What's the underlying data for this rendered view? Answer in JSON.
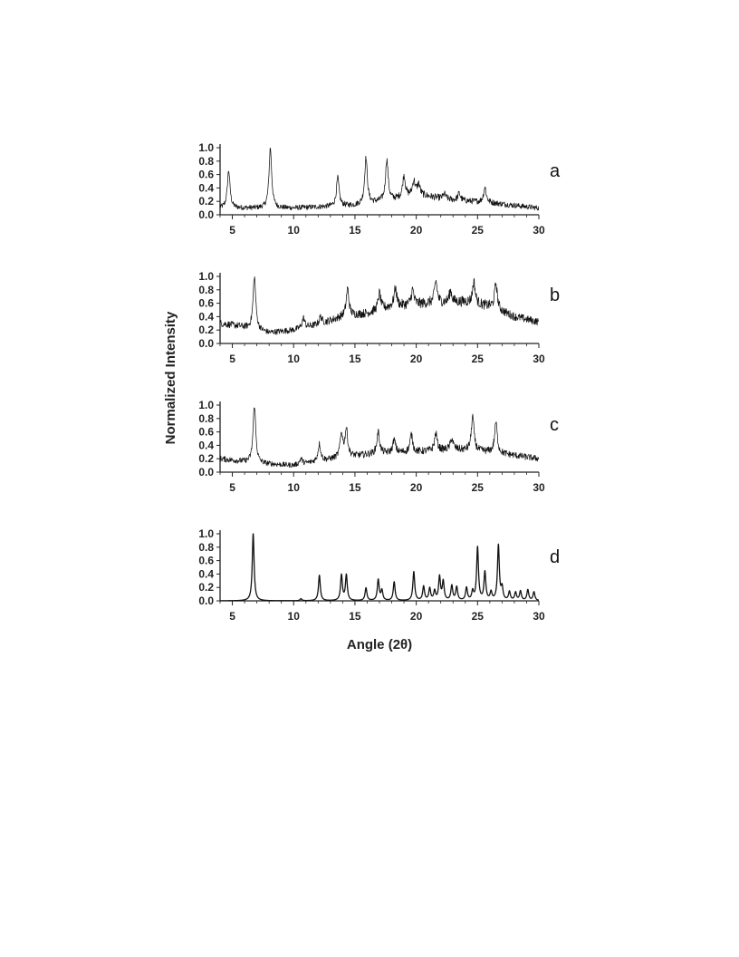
{
  "chart_data": {
    "type": "line",
    "ylabel": "Normalized Intensity",
    "xlabel": "Angle (2θ)",
    "xlim": [
      4,
      30
    ],
    "ylim": [
      0,
      1
    ],
    "xticks": [
      5,
      10,
      15,
      20,
      25,
      30
    ],
    "yticks": [
      0.0,
      0.2,
      0.4,
      0.6,
      0.8,
      1.0
    ],
    "grid": false,
    "panels": [
      {
        "label": "a",
        "style": "noisy",
        "baseline": [
          [
            4,
            0.1
          ],
          [
            10,
            0.1
          ],
          [
            15,
            0.14
          ],
          [
            18,
            0.22
          ],
          [
            20,
            0.3
          ],
          [
            23,
            0.22
          ],
          [
            26,
            0.18
          ],
          [
            30,
            0.1
          ]
        ],
        "peaks": [
          [
            4.7,
            0.66
          ],
          [
            8.1,
            1.0
          ],
          [
            13.6,
            0.55
          ],
          [
            15.9,
            0.85
          ],
          [
            17.6,
            0.82
          ],
          [
            19.0,
            0.58
          ],
          [
            19.8,
            0.5
          ],
          [
            20.2,
            0.45
          ],
          [
            22.3,
            0.31
          ],
          [
            23.5,
            0.32
          ],
          [
            25.6,
            0.41
          ]
        ]
      },
      {
        "label": "b",
        "style": "noisy",
        "baseline": [
          [
            4,
            0.3
          ],
          [
            5.5,
            0.26
          ],
          [
            8,
            0.16
          ],
          [
            10,
            0.2
          ],
          [
            12,
            0.28
          ],
          [
            14,
            0.4
          ],
          [
            16,
            0.45
          ],
          [
            18,
            0.55
          ],
          [
            21,
            0.6
          ],
          [
            24,
            0.62
          ],
          [
            26,
            0.55
          ],
          [
            28,
            0.4
          ],
          [
            30,
            0.32
          ]
        ],
        "peaks": [
          [
            6.8,
            1.0
          ],
          [
            10.8,
            0.38
          ],
          [
            12.2,
            0.4
          ],
          [
            14.4,
            0.82
          ],
          [
            17.0,
            0.75
          ],
          [
            18.3,
            0.82
          ],
          [
            19.7,
            0.8
          ],
          [
            21.6,
            0.93
          ],
          [
            22.8,
            0.78
          ],
          [
            24.7,
            0.92
          ],
          [
            26.5,
            0.9
          ]
        ]
      },
      {
        "label": "c",
        "style": "noisy",
        "baseline": [
          [
            4,
            0.2
          ],
          [
            7,
            0.13
          ],
          [
            10,
            0.1
          ],
          [
            14,
            0.22
          ],
          [
            17,
            0.28
          ],
          [
            20,
            0.3
          ],
          [
            23,
            0.34
          ],
          [
            26,
            0.3
          ],
          [
            28,
            0.25
          ],
          [
            30,
            0.2
          ]
        ],
        "peaks": [
          [
            6.8,
            1.0
          ],
          [
            10.6,
            0.2
          ],
          [
            12.1,
            0.42
          ],
          [
            13.9,
            0.57
          ],
          [
            14.3,
            0.64
          ],
          [
            16.9,
            0.6
          ],
          [
            18.2,
            0.48
          ],
          [
            19.6,
            0.56
          ],
          [
            21.6,
            0.58
          ],
          [
            22.9,
            0.5
          ],
          [
            24.6,
            0.83
          ],
          [
            26.5,
            0.74
          ]
        ]
      },
      {
        "label": "d",
        "style": "smooth",
        "baseline": [
          [
            4,
            0
          ],
          [
            30,
            0
          ]
        ],
        "peaks": [
          [
            6.7,
            1.0
          ],
          [
            10.6,
            0.03
          ],
          [
            12.1,
            0.38
          ],
          [
            13.9,
            0.38
          ],
          [
            14.3,
            0.38
          ],
          [
            15.9,
            0.19
          ],
          [
            16.9,
            0.31
          ],
          [
            17.2,
            0.15
          ],
          [
            18.2,
            0.28
          ],
          [
            19.8,
            0.43
          ],
          [
            20.6,
            0.21
          ],
          [
            21.1,
            0.18
          ],
          [
            21.5,
            0.14
          ],
          [
            21.9,
            0.35
          ],
          [
            22.2,
            0.28
          ],
          [
            22.9,
            0.22
          ],
          [
            23.3,
            0.2
          ],
          [
            24.1,
            0.19
          ],
          [
            24.6,
            0.13
          ],
          [
            25.0,
            0.79
          ],
          [
            25.6,
            0.42
          ],
          [
            26.1,
            0.12
          ],
          [
            26.7,
            0.82
          ],
          [
            27.0,
            0.18
          ],
          [
            27.6,
            0.13
          ],
          [
            28.1,
            0.12
          ],
          [
            28.5,
            0.14
          ],
          [
            29.1,
            0.16
          ],
          [
            29.6,
            0.13
          ]
        ]
      }
    ]
  }
}
